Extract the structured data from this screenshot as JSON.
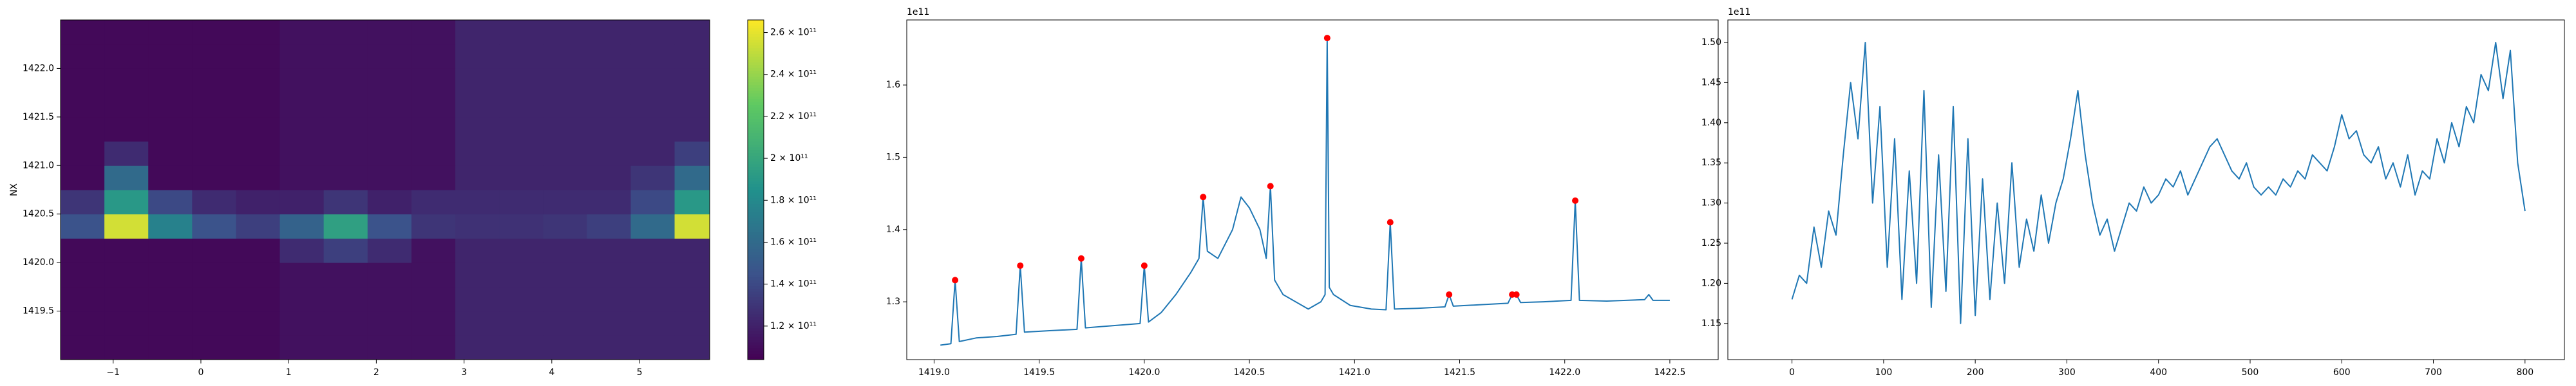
{
  "chart_data": [
    {
      "type": "heatmap",
      "colormap": "viridis",
      "ylabel": "NX",
      "xlim": [
        -1.6,
        5.8
      ],
      "ylim": [
        1419.0,
        1422.5
      ],
      "xticks": [
        {
          "value": -1,
          "label": "−1"
        },
        0,
        1,
        2,
        3,
        4,
        5
      ],
      "yticks": [
        1419.5,
        {
          "value": 1420.0,
          "label": "1420.0"
        },
        1420.5,
        {
          "value": 1421.0,
          "label": "1421.0"
        },
        1421.5,
        {
          "value": 1422.0,
          "label": "1422.0"
        }
      ],
      "xbins": [
        -1.6,
        -1.1,
        -0.6,
        -0.1,
        0.4,
        0.9,
        1.4,
        1.9,
        2.4,
        2.9,
        3.4,
        3.9,
        4.4,
        4.9,
        5.4,
        5.8
      ],
      "ybins": [
        1419.0,
        1419.25,
        1419.5,
        1419.75,
        1420.0,
        1420.25,
        1420.5,
        1420.75,
        1421.0,
        1421.25,
        1421.5,
        1421.75,
        1422.0,
        1422.25,
        1422.5
      ],
      "z": [
        [
          108000000000.0,
          108000000000.0,
          108000000000.0,
          108000000000.0,
          108000000000.0,
          112000000000.0,
          112000000000.0,
          112000000000.0,
          112000000000.0,
          122000000000.0,
          122000000000.0,
          122000000000.0,
          122000000000.0,
          122000000000.0,
          122000000000.0
        ],
        [
          108000000000.0,
          108000000000.0,
          108000000000.0,
          108000000000.0,
          108000000000.0,
          112000000000.0,
          112000000000.0,
          112000000000.0,
          112000000000.0,
          122000000000.0,
          122000000000.0,
          122000000000.0,
          122000000000.0,
          122000000000.0,
          122000000000.0
        ],
        [
          108000000000.0,
          108000000000.0,
          108000000000.0,
          108000000000.0,
          108000000000.0,
          112000000000.0,
          112000000000.0,
          112000000000.0,
          112000000000.0,
          122000000000.0,
          122000000000.0,
          122000000000.0,
          122000000000.0,
          122000000000.0,
          122000000000.0
        ],
        [
          108000000000.0,
          108000000000.0,
          108000000000.0,
          108000000000.0,
          108000000000.0,
          112000000000.0,
          112000000000.0,
          112000000000.0,
          112000000000.0,
          122000000000.0,
          122000000000.0,
          122000000000.0,
          122000000000.0,
          122000000000.0,
          122000000000.0
        ],
        [
          108000000000.0,
          108000000000.0,
          108000000000.0,
          108000000000.0,
          108000000000.0,
          125000000000.0,
          135000000000.0,
          125000000000.0,
          112000000000.0,
          122000000000.0,
          122000000000.0,
          122000000000.0,
          122000000000.0,
          122000000000.0,
          122000000000.0
        ],
        [
          145000000000.0,
          255000000000.0,
          175000000000.0,
          145000000000.0,
          135000000000.0,
          155000000000.0,
          195000000000.0,
          145000000000.0,
          130000000000.0,
          128000000000.0,
          128000000000.0,
          130000000000.0,
          135000000000.0,
          160000000000.0,
          255000000000.0
        ],
        [
          130000000000.0,
          190000000000.0,
          140000000000.0,
          125000000000.0,
          120000000000.0,
          120000000000.0,
          130000000000.0,
          120000000000.0,
          125000000000.0,
          125000000000.0,
          125000000000.0,
          125000000000.0,
          125000000000.0,
          140000000000.0,
          190000000000.0
        ],
        [
          108000000000.0,
          160000000000.0,
          108000000000.0,
          108000000000.0,
          108000000000.0,
          112000000000.0,
          112000000000.0,
          112000000000.0,
          112000000000.0,
          122000000000.0,
          122000000000.0,
          122000000000.0,
          122000000000.0,
          130000000000.0,
          160000000000.0
        ],
        [
          108000000000.0,
          125000000000.0,
          108000000000.0,
          108000000000.0,
          108000000000.0,
          112000000000.0,
          112000000000.0,
          112000000000.0,
          112000000000.0,
          122000000000.0,
          122000000000.0,
          122000000000.0,
          122000000000.0,
          122000000000.0,
          135000000000.0
        ],
        [
          108000000000.0,
          108000000000.0,
          108000000000.0,
          108000000000.0,
          108000000000.0,
          112000000000.0,
          112000000000.0,
          112000000000.0,
          112000000000.0,
          122000000000.0,
          122000000000.0,
          122000000000.0,
          122000000000.0,
          122000000000.0,
          122000000000.0
        ],
        [
          108000000000.0,
          108000000000.0,
          108000000000.0,
          108000000000.0,
          108000000000.0,
          112000000000.0,
          112000000000.0,
          112000000000.0,
          112000000000.0,
          122000000000.0,
          122000000000.0,
          122000000000.0,
          122000000000.0,
          122000000000.0,
          122000000000.0
        ],
        [
          108000000000.0,
          108000000000.0,
          108000000000.0,
          108000000000.0,
          108000000000.0,
          112000000000.0,
          112000000000.0,
          112000000000.0,
          112000000000.0,
          122000000000.0,
          122000000000.0,
          122000000000.0,
          122000000000.0,
          122000000000.0,
          122000000000.0
        ],
        [
          108000000000.0,
          108000000000.0,
          108000000000.0,
          108000000000.0,
          108000000000.0,
          112000000000.0,
          112000000000.0,
          112000000000.0,
          112000000000.0,
          122000000000.0,
          122000000000.0,
          122000000000.0,
          122000000000.0,
          122000000000.0,
          122000000000.0
        ],
        [
          108000000000.0,
          108000000000.0,
          108000000000.0,
          108000000000.0,
          108000000000.0,
          112000000000.0,
          112000000000.0,
          112000000000.0,
          112000000000.0,
          122000000000.0,
          122000000000.0,
          122000000000.0,
          122000000000.0,
          122000000000.0,
          122000000000.0
        ]
      ],
      "clim": [
        104000000000.0,
        266000000000.0
      ],
      "cticks": [
        {
          "value": 120000000000.0,
          "label": "1.2 × 10¹¹"
        },
        {
          "value": 140000000000.0,
          "label": "1.4 × 10¹¹"
        },
        {
          "value": 160000000000.0,
          "label": "1.6 × 10¹¹"
        },
        {
          "value": 180000000000.0,
          "label": "1.8 × 10¹¹"
        },
        {
          "value": 200000000000.0,
          "label": "2 × 10¹¹"
        },
        {
          "value": 220000000000.0,
          "label": "2.2 × 10¹¹"
        },
        {
          "value": 240000000000.0,
          "label": "2.4 × 10¹¹"
        },
        {
          "value": 260000000000.0,
          "label": "2.6 × 10¹¹"
        }
      ]
    },
    {
      "type": "line",
      "offset_text": "1e11",
      "xlim": [
        1418.87,
        1422.73
      ],
      "ylim": [
        122000000000.0,
        169000000000.0
      ],
      "xticks": [
        {
          "value": 1419.0,
          "label": "1419.0"
        },
        1419.5,
        {
          "value": 1420.0,
          "label": "1420.0"
        },
        1420.5,
        {
          "value": 1421.0,
          "label": "1421.0"
        },
        1421.5,
        {
          "value": 1422.0,
          "label": "1422.0"
        },
        1422.5
      ],
      "yticks": [
        {
          "value": 130000000000.0,
          "label": "1.3"
        },
        {
          "value": 140000000000.0,
          "label": "1.4"
        },
        {
          "value": 150000000000.0,
          "label": "1.5"
        },
        {
          "value": 160000000000.0,
          "label": "1.6"
        }
      ],
      "series": [
        {
          "type": "line",
          "color": "#1f77b4",
          "x": [
            1419.03,
            1419.08,
            1419.1,
            1419.12,
            1419.2,
            1419.3,
            1419.39,
            1419.41,
            1419.43,
            1419.55,
            1419.68,
            1419.7,
            1419.72,
            1419.85,
            1419.98,
            1420.0,
            1420.02,
            1420.08,
            1420.15,
            1420.22,
            1420.26,
            1420.28,
            1420.3,
            1420.35,
            1420.42,
            1420.46,
            1420.5,
            1420.55,
            1420.58,
            1420.6,
            1420.62,
            1420.66,
            1420.72,
            1420.78,
            1420.84,
            1420.86,
            1420.87,
            1420.88,
            1420.9,
            1420.98,
            1421.08,
            1421.15,
            1421.17,
            1421.19,
            1421.3,
            1421.43,
            1421.45,
            1421.47,
            1421.6,
            1421.73,
            1421.75,
            1421.77,
            1421.79,
            1421.9,
            1422.03,
            1422.05,
            1422.07,
            1422.2,
            1422.38,
            1422.4,
            1422.42,
            1422.5
          ],
          "values": [
            124000000000.0,
            124200000000.0,
            133000000000.0,
            124500000000.0,
            125000000000.0,
            125200000000.0,
            125500000000.0,
            135000000000.0,
            125800000000.0,
            126000000000.0,
            126200000000.0,
            136000000000.0,
            126400000000.0,
            126700000000.0,
            127000000000.0,
            135000000000.0,
            127200000000.0,
            128500000000.0,
            131000000000.0,
            134000000000.0,
            136000000000.0,
            144500000000.0,
            137000000000.0,
            136000000000.0,
            140000000000.0,
            144500000000.0,
            143000000000.0,
            140000000000.0,
            136000000000.0,
            146000000000.0,
            133000000000.0,
            131000000000.0,
            130000000000.0,
            129000000000.0,
            130000000000.0,
            131000000000.0,
            166500000000.0,
            132000000000.0,
            131000000000.0,
            129500000000.0,
            129000000000.0,
            128900000000.0,
            141000000000.0,
            129000000000.0,
            129100000000.0,
            129300000000.0,
            131000000000.0,
            129400000000.0,
            129600000000.0,
            129800000000.0,
            131000000000.0,
            131000000000.0,
            129900000000.0,
            130000000000.0,
            130200000000.0,
            144000000000.0,
            130200000000.0,
            130100000000.0,
            130300000000.0,
            131000000000.0,
            130200000000.0,
            130200000000.0
          ]
        },
        {
          "type": "scatter",
          "color": "#ff0000",
          "x": [
            1419.1,
            1419.41,
            1419.7,
            1420.0,
            1420.28,
            1420.6,
            1420.87,
            1421.17,
            1421.45,
            1421.75,
            1421.77,
            1422.05
          ],
          "values": [
            133000000000.0,
            135000000000.0,
            136000000000.0,
            135000000000.0,
            144500000000.0,
            146000000000.0,
            166500000000.0,
            141000000000.0,
            131000000000.0,
            131000000000.0,
            131000000000.0,
            144000000000.0
          ]
        }
      ]
    },
    {
      "type": "line",
      "offset_text": "1e11",
      "xlim": [
        -70,
        843
      ],
      "ylim": [
        110500000000.0,
        152800000000.0
      ],
      "xticks": [
        0,
        100,
        200,
        300,
        400,
        500,
        600,
        700,
        800
      ],
      "yticks": [
        {
          "value": 115000000000.0,
          "label": "1.15"
        },
        {
          "value": 120000000000.0,
          "label": "1.20"
        },
        {
          "value": 125000000000.0,
          "label": "1.25"
        },
        {
          "value": 130000000000.0,
          "label": "1.30"
        },
        {
          "value": 135000000000.0,
          "label": "1.35"
        },
        {
          "value": 140000000000.0,
          "label": "1.40"
        },
        {
          "value": 145000000000.0,
          "label": "1.45"
        },
        {
          "value": 150000000000.0,
          "label": "1.50"
        }
      ],
      "series": [
        {
          "type": "line",
          "color": "#1f77b4",
          "x": [
            0,
            8,
            16,
            24,
            32,
            40,
            48,
            56,
            64,
            72,
            80,
            88,
            96,
            104,
            112,
            120,
            128,
            136,
            144,
            152,
            160,
            168,
            176,
            184,
            192,
            200,
            208,
            216,
            224,
            232,
            240,
            248,
            256,
            264,
            272,
            280,
            288,
            296,
            304,
            312,
            320,
            328,
            336,
            344,
            352,
            360,
            368,
            376,
            384,
            392,
            400,
            408,
            416,
            424,
            432,
            440,
            448,
            456,
            464,
            472,
            480,
            488,
            496,
            504,
            512,
            520,
            528,
            536,
            544,
            552,
            560,
            568,
            576,
            584,
            592,
            600,
            608,
            616,
            624,
            632,
            640,
            648,
            656,
            664,
            672,
            680,
            688,
            696,
            704,
            712,
            720,
            728,
            736,
            744,
            752,
            760,
            768,
            776,
            784,
            792,
            800
          ],
          "values": [
            118000000000.0,
            121000000000.0,
            120000000000.0,
            127000000000.0,
            122000000000.0,
            129000000000.0,
            126000000000.0,
            136000000000.0,
            145000000000.0,
            138000000000.0,
            150000000000.0,
            130000000000.0,
            142000000000.0,
            122000000000.0,
            138000000000.0,
            118000000000.0,
            134000000000.0,
            120000000000.0,
            144000000000.0,
            117000000000.0,
            136000000000.0,
            119000000000.0,
            142000000000.0,
            115000000000.0,
            138000000000.0,
            116000000000.0,
            133000000000.0,
            118000000000.0,
            130000000000.0,
            120000000000.0,
            135000000000.0,
            122000000000.0,
            128000000000.0,
            124000000000.0,
            131000000000.0,
            125000000000.0,
            130000000000.0,
            133000000000.0,
            138000000000.0,
            144000000000.0,
            136000000000.0,
            130000000000.0,
            126000000000.0,
            128000000000.0,
            124000000000.0,
            127000000000.0,
            130000000000.0,
            129000000000.0,
            132000000000.0,
            130000000000.0,
            131000000000.0,
            133000000000.0,
            132000000000.0,
            134000000000.0,
            131000000000.0,
            133000000000.0,
            135000000000.0,
            137000000000.0,
            138000000000.0,
            136000000000.0,
            134000000000.0,
            133000000000.0,
            135000000000.0,
            132000000000.0,
            131000000000.0,
            132000000000.0,
            131000000000.0,
            133000000000.0,
            132000000000.0,
            134000000000.0,
            133000000000.0,
            136000000000.0,
            135000000000.0,
            134000000000.0,
            137000000000.0,
            141000000000.0,
            138000000000.0,
            139000000000.0,
            136000000000.0,
            135000000000.0,
            137000000000.0,
            133000000000.0,
            135000000000.0,
            132000000000.0,
            136000000000.0,
            131000000000.0,
            134000000000.0,
            133000000000.0,
            138000000000.0,
            135000000000.0,
            140000000000.0,
            137000000000.0,
            142000000000.0,
            140000000000.0,
            146000000000.0,
            144000000000.0,
            150000000000.0,
            143000000000.0,
            149000000000.0,
            135000000000.0,
            129000000000.0
          ]
        }
      ]
    }
  ]
}
